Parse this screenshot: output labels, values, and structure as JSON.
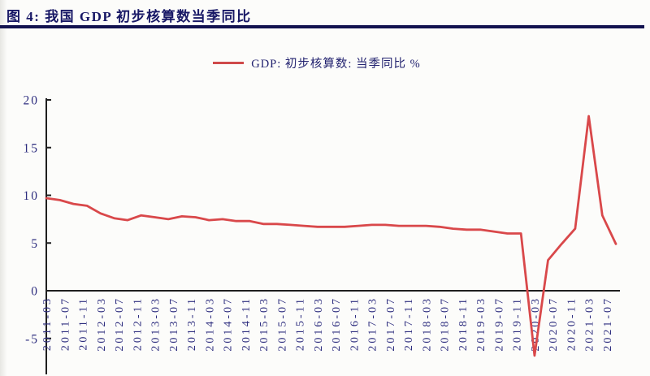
{
  "figure": {
    "title": "图 4: 我国 GDP 初步核算数当季同比",
    "legend_label": "GDP: 初步核算数: 当季同比 %"
  },
  "colors": {
    "line": "#d9484a",
    "title_navy": "#181866",
    "rule_navy": "#12124f",
    "axis_text": "#2e2e7f",
    "axis_line": "#1f1f1f"
  },
  "chart_data": {
    "type": "line",
    "title": "图 4: 我国 GDP 初步核算数当季同比",
    "xlabel": "",
    "ylabel": "",
    "ylim": [
      -5,
      20
    ],
    "y_ticks": [
      20,
      15,
      10,
      5,
      0,
      -5
    ],
    "grid": false,
    "legend_position": "top-center",
    "x": [
      "2011Q1",
      "2011Q2",
      "2011Q3",
      "2011Q4",
      "2012Q1",
      "2012Q2",
      "2012Q3",
      "2012Q4",
      "2013Q1",
      "2013Q2",
      "2013Q3",
      "2013Q4",
      "2014Q1",
      "2014Q2",
      "2014Q3",
      "2014Q4",
      "2015Q1",
      "2015Q2",
      "2015Q3",
      "2015Q4",
      "2016Q1",
      "2016Q2",
      "2016Q3",
      "2016Q4",
      "2017Q1",
      "2017Q2",
      "2017Q3",
      "2017Q4",
      "2018Q1",
      "2018Q2",
      "2018Q3",
      "2018Q4",
      "2019Q1",
      "2019Q2",
      "2019Q3",
      "2019Q4",
      "2020Q1",
      "2020Q2",
      "2020Q3",
      "2020Q4",
      "2021Q1",
      "2021Q2",
      "2021Q3"
    ],
    "series": [
      {
        "name": "GDP: 初步核算数: 当季同比 %",
        "values": [
          9.7,
          9.5,
          9.1,
          8.9,
          8.1,
          7.6,
          7.4,
          7.9,
          7.7,
          7.5,
          7.8,
          7.7,
          7.4,
          7.5,
          7.3,
          7.3,
          7.0,
          7.0,
          6.9,
          6.8,
          6.7,
          6.7,
          6.7,
          6.8,
          6.9,
          6.9,
          6.8,
          6.8,
          6.8,
          6.7,
          6.5,
          6.4,
          6.4,
          6.2,
          6.0,
          6.0,
          -6.8,
          3.2,
          4.9,
          6.5,
          18.3,
          7.9,
          4.9
        ]
      }
    ],
    "x_tick_labels": [
      "2011-03",
      "2011-07",
      "2011-11",
      "2012-03",
      "2012-07",
      "2012-11",
      "2013-03",
      "2013-07",
      "2013-11",
      "2014-03",
      "2014-07",
      "2014-11",
      "2015-03",
      "2015-07",
      "2015-11",
      "2016-03",
      "2016-07",
      "2016-11",
      "2017-03",
      "2017-07",
      "2017-11",
      "2018-03",
      "2018-07",
      "2018-11",
      "2019-03",
      "2019-07",
      "2019-11",
      "2020-03",
      "2020-07",
      "2020-11",
      "2021-03",
      "2021-07"
    ]
  }
}
